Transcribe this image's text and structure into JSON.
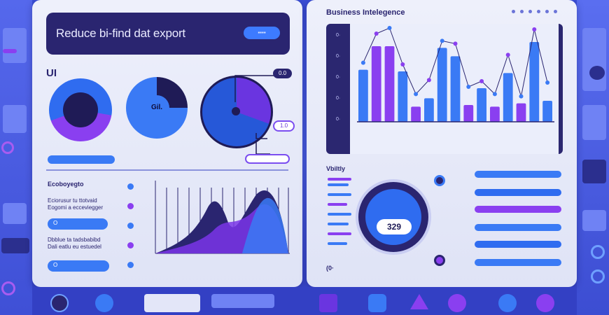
{
  "header": {
    "title": "Reduce bi-find dat export",
    "badge": "▪▪▪▪"
  },
  "left": {
    "ui_label": "UI",
    "donut2_label": "Gil.",
    "donut_badge_top": "0.0",
    "donut_badge_mid": "1.0",
    "section_title": "Ecoboyegto",
    "para1": [
      "Eciorusur tu ttotvaid",
      "Eogomi a ecceviegger"
    ],
    "para2": [
      "Dbblue ta tadsbabibd",
      "Dali eatlu eu estuedel"
    ],
    "button1_icon": "O",
    "button2_icon": "O"
  },
  "right": {
    "title": "Business Intelegence",
    "bars": [
      62,
      90,
      90,
      60,
      18,
      28,
      88,
      78,
      20,
      40,
      18,
      58,
      22,
      95,
      25
    ],
    "bar_colors": [
      "blue",
      "purple",
      "purple",
      "blue",
      "purple",
      "blue",
      "blue",
      "blue",
      "purple",
      "blue",
      "purple",
      "blue",
      "purple",
      "blue",
      "blue"
    ],
    "y_ticks": [
      "0·",
      "0·",
      "0·",
      "0·",
      "0·"
    ],
    "vitality_label": "Vbiltly",
    "gauge_value": "329",
    "footer_label": "(0·"
  },
  "colors": {
    "navy": "#2a2570",
    "blue": "#3a7af5",
    "purple": "#8a3ff0",
    "panel": "#eef0fb"
  }
}
